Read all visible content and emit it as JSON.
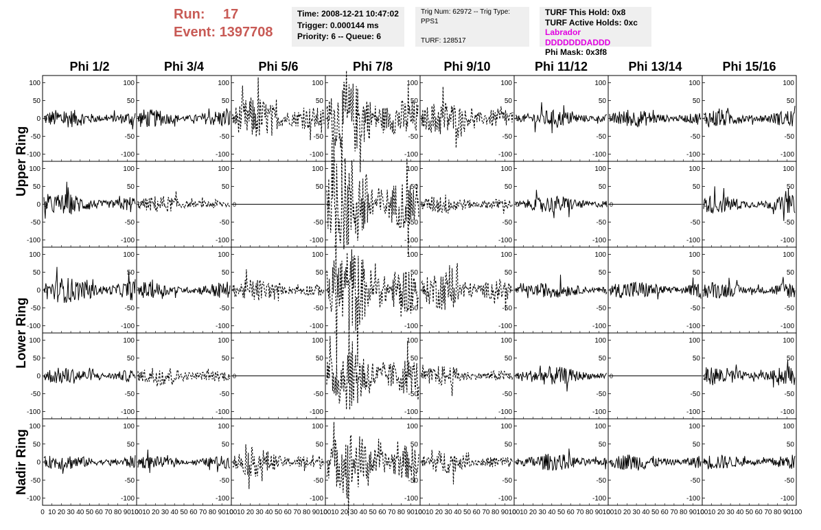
{
  "header": {
    "run_label": "Run:",
    "run_value": "17",
    "event_label": "Event:",
    "event_value": "1397708",
    "time": "Time: 2008-12-21 10:47:02",
    "trigger": "Trigger: 0.000144 ms",
    "priority": "Priority: 6 -- Queue: 6",
    "trig_num": "Trig Num: 62972 -- Trig Type: PPS1",
    "turf": "TURF: 128517",
    "turf_this_hold": "TURF This Hold: 0x8",
    "turf_active_holds": "TURF Active Holds: 0xc",
    "labrador": "Labrador DDDDDDDADDD",
    "phi_mask": "Phi Mask: 0x3f8"
  },
  "colors": {
    "run_text": "#c85a55",
    "labrador": "#e100e1",
    "info_bg": "#efefef"
  },
  "chart_data": {
    "type": "line",
    "columns": [
      "Phi 1/2",
      "Phi 3/4",
      "Phi 5/6",
      "Phi 7/8",
      "Phi 9/10",
      "Phi 11/12",
      "Phi 13/14",
      "Phi 15/16"
    ],
    "rows": [
      {
        "name": "upper-1",
        "label": "",
        "label_text": ""
      },
      {
        "name": "upper-2",
        "label": "Upper Ring"
      },
      {
        "name": "lower-1",
        "label": ""
      },
      {
        "name": "lower-2",
        "label": "Lower Ring"
      },
      {
        "name": "nadir",
        "label": "Nadir Ring"
      }
    ],
    "ylim": [
      -120,
      120
    ],
    "yticks": [
      100,
      50,
      0,
      -50,
      -100
    ],
    "ytick_labels": [
      "100",
      "50",
      "0",
      "-50",
      "-100"
    ],
    "xlim": [
      0,
      100
    ],
    "xtick_labels": [
      "0",
      "10",
      "20",
      "30",
      "40",
      "50",
      "60",
      "70",
      "80",
      "90",
      "100"
    ],
    "styles": [
      "solid",
      "dashed",
      "flat"
    ],
    "panels": [
      [
        "solid:22",
        "solid:22",
        "dashed:38",
        "dashed:65",
        "dashed:32",
        "solid:20",
        "solid:20",
        "solid:22"
      ],
      [
        "solid:25",
        "dashed:15",
        "flat:0",
        "dashed:85",
        "dashed:18",
        "solid:20",
        "flat:0",
        "solid:22"
      ],
      [
        "solid:30",
        "solid:20",
        "dashed:20",
        "dashed:75",
        "dashed:35",
        "solid:18",
        "solid:22",
        "solid:20"
      ],
      [
        "solid:20",
        "dashed:18",
        "flat:0",
        "dashed:60",
        "dashed:18",
        "solid:22",
        "flat:0",
        "solid:22"
      ],
      [
        "solid:18",
        "solid:15",
        "dashed:25",
        "dashed:55",
        "dashed:20",
        "solid:20",
        "solid:20",
        "solid:18"
      ]
    ]
  }
}
